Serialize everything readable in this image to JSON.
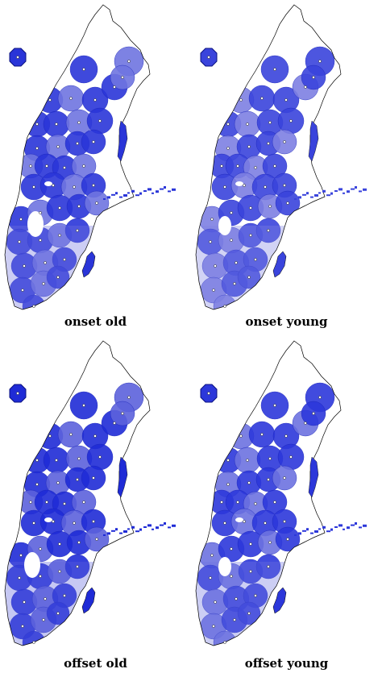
{
  "panels": [
    {
      "label": "onset old",
      "fill": "#2a35d8",
      "pale": "#6f74e0"
    },
    {
      "label": "onset young",
      "fill": "#3a44dc",
      "pale": "#7d80e2"
    },
    {
      "label": "offset old",
      "fill": "#1f2bd6",
      "pale": "#5c62dc"
    },
    {
      "label": "offset young",
      "fill": "#2c37da",
      "pale": "#6d72e0"
    }
  ],
  "colors": {
    "outline": "#000000",
    "station": "#ffffff",
    "station_ring": "#222222",
    "background": "#ffffff"
  },
  "icons": {
    "station_marker": "white-dot-icon",
    "inset_marker": "octagon-blob-icon"
  }
}
